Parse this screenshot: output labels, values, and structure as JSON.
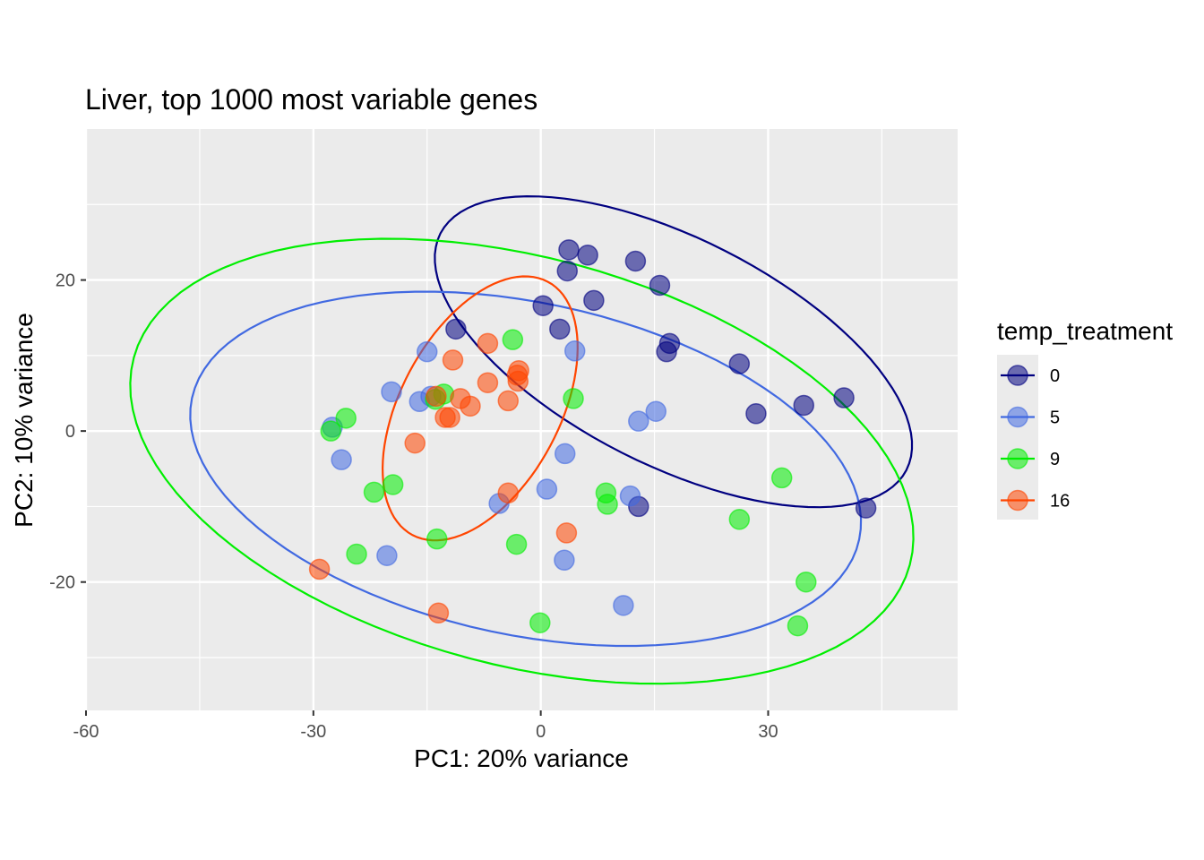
{
  "chart_data": {
    "type": "scatter",
    "title": "Liver, top 1000 most variable genes",
    "xlabel": "PC1: 20% variance",
    "ylabel": "PC2: 10% variance",
    "xlim": [
      -60,
      55
    ],
    "ylim": [
      -37,
      40
    ],
    "x_ticks": [
      -60,
      -30,
      0,
      30
    ],
    "y_ticks": [
      -20,
      0,
      20
    ],
    "x_minor": [
      -45,
      -15,
      15,
      45
    ],
    "y_minor": [
      -30,
      -10,
      10,
      30
    ],
    "x_tick_labels": [
      "-60",
      "-30",
      "0",
      "30"
    ],
    "y_tick_labels": [
      "-20",
      "0",
      "20"
    ],
    "grid": true,
    "legend": {
      "title": "temp_treatment",
      "position": "right"
    },
    "series": [
      {
        "name": "0",
        "color": "#000080",
        "points": [
          [
            3.7,
            24.0
          ],
          [
            6.2,
            23.3
          ],
          [
            12.5,
            22.5
          ],
          [
            3.5,
            21.2
          ],
          [
            15.7,
            19.3
          ],
          [
            7.0,
            17.3
          ],
          [
            0.3,
            16.6
          ],
          [
            -11.2,
            13.5
          ],
          [
            2.5,
            13.5
          ],
          [
            17.0,
            11.6
          ],
          [
            16.6,
            10.5
          ],
          [
            26.2,
            8.9
          ],
          [
            34.7,
            3.4
          ],
          [
            40.0,
            4.4
          ],
          [
            28.4,
            2.3
          ],
          [
            42.9,
            -10.2
          ],
          [
            12.9,
            -10.0
          ]
        ],
        "ellipse": {
          "cx": 17.5,
          "cy": 10.5,
          "rx": 34.5,
          "ry": 15.0,
          "angle_deg": -27
        }
      },
      {
        "name": "5",
        "color": "#4169E1",
        "points": [
          [
            -15.0,
            10.5
          ],
          [
            4.5,
            10.6
          ],
          [
            -19.7,
            5.2
          ],
          [
            -14.5,
            4.6
          ],
          [
            -16.0,
            3.9
          ],
          [
            -27.5,
            0.5
          ],
          [
            -26.3,
            -3.8
          ],
          [
            15.2,
            2.6
          ],
          [
            12.9,
            1.3
          ],
          [
            3.2,
            -3.0
          ],
          [
            0.8,
            -7.7
          ],
          [
            11.8,
            -8.6
          ],
          [
            -5.5,
            -9.6
          ],
          [
            -20.3,
            -16.5
          ],
          [
            3.1,
            -17.1
          ],
          [
            10.9,
            -23.1
          ]
        ],
        "ellipse": {
          "cx": -2.0,
          "cy": -5.0,
          "rx": 45.0,
          "ry": 22.0,
          "angle_deg": -12
        }
      },
      {
        "name": "9",
        "color": "#00EE00",
        "points": [
          [
            -3.7,
            12.1
          ],
          [
            -12.8,
            4.9
          ],
          [
            -13.9,
            4.2
          ],
          [
            4.3,
            4.3
          ],
          [
            -25.7,
            1.7
          ],
          [
            -27.7,
            0.0
          ],
          [
            -19.5,
            -7.1
          ],
          [
            -22.0,
            -8.1
          ],
          [
            31.8,
            -6.2
          ],
          [
            8.6,
            -8.2
          ],
          [
            8.8,
            -9.7
          ],
          [
            26.2,
            -11.7
          ],
          [
            -13.7,
            -14.3
          ],
          [
            -3.2,
            -15.0
          ],
          [
            -24.3,
            -16.3
          ],
          [
            35.0,
            -20.0
          ],
          [
            -0.1,
            -25.4
          ],
          [
            33.9,
            -25.8
          ]
        ],
        "ellipse": {
          "cx": -2.5,
          "cy": -4.0,
          "rx": 53.0,
          "ry": 27.0,
          "angle_deg": -15
        }
      },
      {
        "name": "16",
        "color": "#FF4500",
        "points": [
          [
            -7.0,
            11.6
          ],
          [
            -11.6,
            9.4
          ],
          [
            -2.9,
            8.0
          ],
          [
            -3.1,
            7.4
          ],
          [
            -3.0,
            6.6
          ],
          [
            -7.0,
            6.4
          ],
          [
            -4.3,
            4.0
          ],
          [
            -13.8,
            4.6
          ],
          [
            -10.6,
            4.3
          ],
          [
            -9.3,
            3.3
          ],
          [
            -12.6,
            1.8
          ],
          [
            -12.0,
            1.8
          ],
          [
            -16.6,
            -1.6
          ],
          [
            -4.3,
            -8.2
          ],
          [
            3.4,
            -13.5
          ],
          [
            -29.2,
            -18.3
          ],
          [
            -13.5,
            -24.1
          ]
        ],
        "ellipse": {
          "cx": -8.0,
          "cy": 3.0,
          "rx": 19.0,
          "ry": 10.5,
          "angle_deg": 62
        }
      }
    ]
  }
}
